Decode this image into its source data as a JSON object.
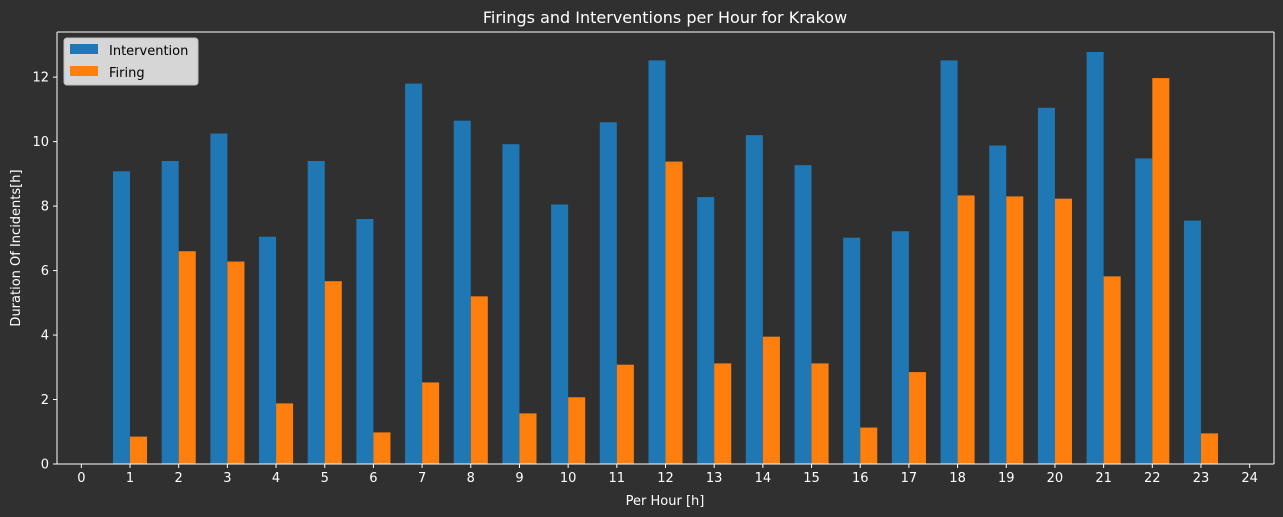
{
  "chart_data": {
    "type": "bar",
    "title": "Firings and Interventions per Hour for Krakow",
    "xlabel": "Per Hour [h]",
    "ylabel": "Duration Of Incidents[h]",
    "xlim": [
      -0.5,
      24.5
    ],
    "ylim": [
      0,
      13.4
    ],
    "xticks": [
      0,
      1,
      2,
      3,
      4,
      5,
      6,
      7,
      8,
      9,
      10,
      11,
      12,
      13,
      14,
      15,
      16,
      17,
      18,
      19,
      20,
      21,
      22,
      23,
      24
    ],
    "yticks": [
      0,
      2,
      4,
      6,
      8,
      10,
      12
    ],
    "grid": false,
    "legend_position": "top-left",
    "x": [
      1,
      2,
      3,
      4,
      5,
      6,
      7,
      8,
      9,
      10,
      11,
      12,
      13,
      14,
      15,
      16,
      17,
      18,
      19,
      20,
      21,
      22,
      23
    ],
    "series": [
      {
        "name": "Intervention",
        "color": "#1f77b4",
        "values": [
          9.08,
          9.4,
          10.25,
          7.05,
          9.4,
          7.6,
          11.8,
          10.65,
          9.92,
          8.05,
          10.6,
          12.52,
          8.28,
          10.2,
          9.27,
          7.02,
          7.22,
          12.52,
          9.88,
          11.05,
          12.78,
          9.48,
          7.55
        ]
      },
      {
        "name": "Firing",
        "color": "#ff7f0e",
        "values": [
          0.85,
          6.6,
          6.28,
          1.88,
          5.67,
          0.98,
          2.53,
          5.2,
          1.57,
          2.07,
          3.08,
          9.38,
          3.12,
          3.95,
          3.12,
          1.13,
          2.85,
          8.33,
          8.3,
          8.23,
          5.82,
          11.97,
          0.95
        ]
      }
    ]
  }
}
